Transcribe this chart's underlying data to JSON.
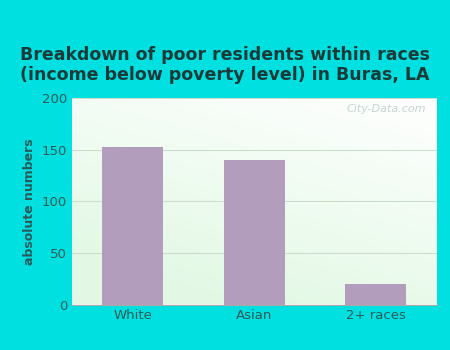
{
  "categories": [
    "White",
    "Asian",
    "2+ races"
  ],
  "values": [
    153,
    140,
    20
  ],
  "bar_color": "#b39dbd",
  "title": "Breakdown of poor residents within races\n(income below poverty level) in Buras, LA",
  "ylabel": "absolute numbers",
  "ylim": [
    0,
    200
  ],
  "yticks": [
    0,
    50,
    100,
    150,
    200
  ],
  "title_color": "#1a3a3a",
  "title_fontsize": 12.5,
  "ylabel_color": "#2a5a5a",
  "ylabel_fontsize": 9,
  "tick_color": "#2a5a5a",
  "outer_bg": "#00e0e0",
  "watermark": "City-Data.com",
  "bar_width": 0.5,
  "grid_color": "#ccddcc",
  "bottom_line_color": "#aaaaaa"
}
